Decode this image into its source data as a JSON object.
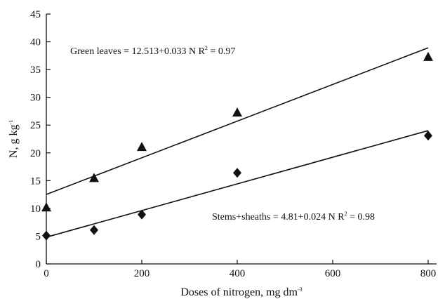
{
  "chart_data": {
    "type": "scatter",
    "xlabel": "Doses of nitrogen, mg dm",
    "xlabel_superscript": "-3",
    "ylabel": "N, g kg",
    "ylabel_superscript": "-1",
    "xlim": [
      0,
      800
    ],
    "ylim": [
      0,
      45
    ],
    "xticks": [
      0,
      200,
      400,
      600,
      800
    ],
    "yticks": [
      0,
      5,
      10,
      15,
      20,
      25,
      30,
      35,
      40,
      45
    ],
    "grid": false,
    "series": [
      {
        "key": "green-leaves",
        "marker": "triangle",
        "x": [
          0,
          100,
          200,
          400,
          800
        ],
        "y": [
          10.2,
          15.5,
          21.1,
          27.3,
          37.3
        ],
        "fit": {
          "intercept": 12.513,
          "slope": 0.033
        },
        "equation": "Green leaves = 12.513+0.033 N  R",
        "r2_exponent": "2",
        "r2_value": " = 0.97"
      },
      {
        "key": "stems-sheaths",
        "marker": "diamond",
        "x": [
          0,
          100,
          200,
          400,
          800
        ],
        "y": [
          5.1,
          6.1,
          8.9,
          16.4,
          23.1
        ],
        "fit": {
          "intercept": 4.81,
          "slope": 0.024
        },
        "equation": "Stems+sheaths = 4.81+0.024 N  R",
        "r2_exponent": "2",
        "r2_value": " = 0.98"
      }
    ],
    "colors": {
      "ink": "#111111",
      "background": "#ffffff"
    }
  }
}
